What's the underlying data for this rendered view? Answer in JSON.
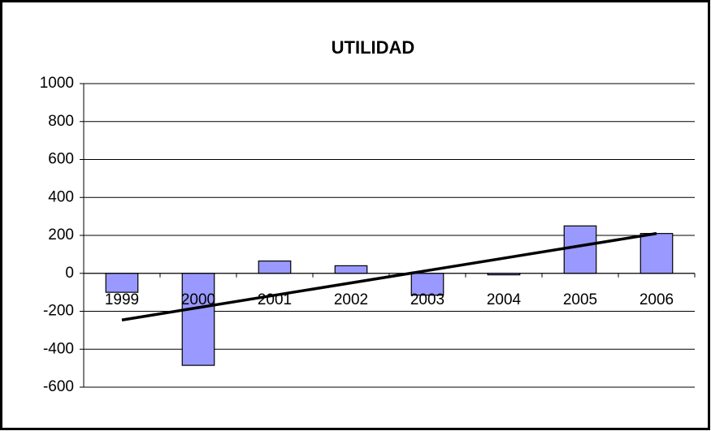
{
  "chart_data": {
    "type": "bar",
    "title": "UTILIDAD",
    "categories": [
      "1999",
      "2000",
      "2001",
      "2002",
      "2003",
      "2004",
      "2005",
      "2006"
    ],
    "values": [
      -100,
      -485,
      65,
      40,
      -115,
      -8,
      250,
      210
    ],
    "color": "#9999ff",
    "ylim": [
      -600,
      1000
    ],
    "yticks": [
      -600,
      -400,
      -200,
      0,
      200,
      400,
      600,
      800,
      1000
    ],
    "grid": true,
    "trendline": "linear",
    "trendline_color": "#000000"
  }
}
